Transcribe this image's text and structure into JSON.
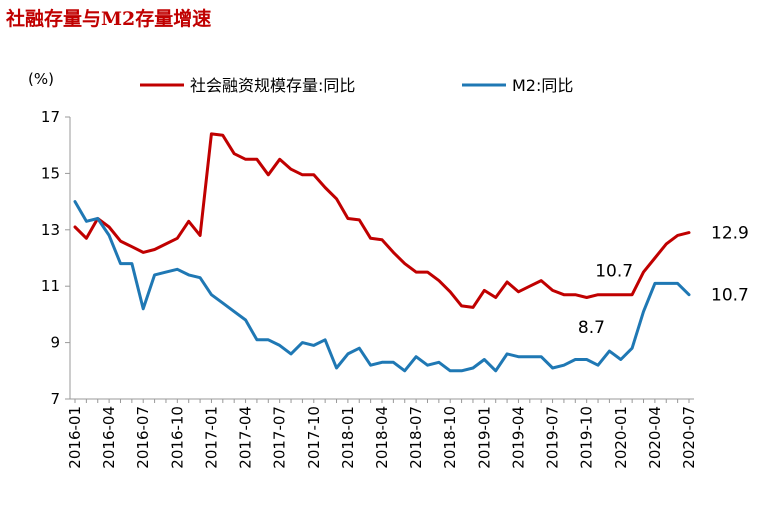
{
  "title": "社融存量与M2存量增速",
  "chart_data": {
    "type": "line",
    "title": "社融存量与M2存量增速",
    "unit_label": "(%)",
    "ylim": [
      7,
      17
    ],
    "yticks": [
      7,
      9,
      11,
      13,
      15,
      17
    ],
    "grid": false,
    "legend_placement": "top",
    "x": [
      "2016-01",
      "2016-02",
      "2016-03",
      "2016-04",
      "2016-05",
      "2016-06",
      "2016-07",
      "2016-08",
      "2016-09",
      "2016-10",
      "2016-11",
      "2016-12",
      "2017-01",
      "2017-02",
      "2017-03",
      "2017-04",
      "2017-05",
      "2017-06",
      "2017-07",
      "2017-08",
      "2017-09",
      "2017-10",
      "2017-11",
      "2017-12",
      "2018-01",
      "2018-02",
      "2018-03",
      "2018-04",
      "2018-05",
      "2018-06",
      "2018-07",
      "2018-08",
      "2018-09",
      "2018-10",
      "2018-11",
      "2018-12",
      "2019-01",
      "2019-02",
      "2019-03",
      "2019-04",
      "2019-05",
      "2019-06",
      "2019-07",
      "2019-08",
      "2019-09",
      "2019-10",
      "2019-11",
      "2019-12",
      "2020-01",
      "2020-02",
      "2020-03",
      "2020-04",
      "2020-05",
      "2020-06",
      "2020-07"
    ],
    "xtick_labels": [
      "2016-01",
      "2016-04",
      "2016-07",
      "2016-10",
      "2017-01",
      "2017-04",
      "2017-07",
      "2017-10",
      "2018-01",
      "2018-04",
      "2018-07",
      "2018-10",
      "2019-01",
      "2019-04",
      "2019-07",
      "2019-10",
      "2020-01",
      "2020-04",
      "2020-07"
    ],
    "series": [
      {
        "name": "社会融资规模存量:同比",
        "color": "#c00000",
        "values": [
          13.1,
          12.7,
          13.4,
          13.1,
          12.6,
          12.4,
          12.2,
          12.3,
          12.5,
          12.7,
          13.3,
          12.8,
          16.4,
          16.35,
          15.7,
          15.5,
          15.5,
          14.95,
          15.5,
          15.15,
          14.95,
          14.95,
          14.5,
          14.1,
          13.4,
          13.35,
          12.7,
          12.65,
          12.2,
          11.8,
          11.5,
          11.5,
          11.2,
          10.8,
          10.3,
          10.25,
          10.85,
          10.6,
          11.15,
          10.8,
          11.0,
          11.2,
          10.85,
          10.7,
          10.7,
          10.6,
          10.7,
          10.7,
          10.7,
          10.7,
          11.5,
          12.0,
          12.5,
          12.8,
          12.9
        ]
      },
      {
        "name": "M2:同比",
        "color": "#1f78b4",
        "values": [
          14.0,
          13.3,
          13.4,
          12.8,
          11.8,
          11.8,
          10.2,
          11.4,
          11.5,
          11.6,
          11.4,
          11.3,
          10.7,
          10.4,
          10.1,
          9.8,
          9.1,
          9.1,
          8.9,
          8.6,
          9.0,
          8.9,
          9.1,
          8.1,
          8.6,
          8.8,
          8.2,
          8.3,
          8.3,
          8.0,
          8.5,
          8.2,
          8.3,
          8.0,
          8.0,
          8.1,
          8.4,
          8.0,
          8.6,
          8.5,
          8.5,
          8.5,
          8.1,
          8.2,
          8.4,
          8.4,
          8.2,
          8.7,
          8.4,
          8.8,
          10.1,
          11.1,
          11.1,
          11.1,
          10.7
        ]
      }
    ],
    "annotations": [
      {
        "text": "12.9",
        "series": 0,
        "index": 54,
        "pos": "right"
      },
      {
        "text": "10.7",
        "series": 1,
        "index": 54,
        "pos": "right"
      },
      {
        "text": "10.7",
        "series": 0,
        "index": 49,
        "pos": "above"
      },
      {
        "text": "8.7",
        "series": 1,
        "index": 47,
        "pos": "above"
      }
    ]
  }
}
